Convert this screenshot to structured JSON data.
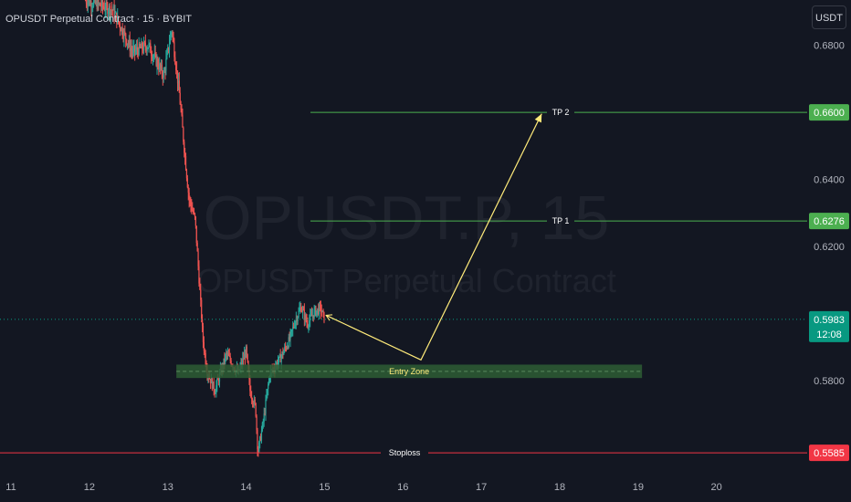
{
  "header": {
    "symbol_title": "OPUSDT Perpetual Contract · 15 · BYBIT",
    "currency_button": "USDT"
  },
  "watermark": {
    "line1": "OPUSDT.P, 15",
    "line2": "OPUSDT Perpetual Contract"
  },
  "colors": {
    "background": "#131722",
    "candle_up": "#26a69a",
    "candle_down": "#ef5350",
    "tp_line": "#4caf50",
    "stoploss_line": "#f23645",
    "entry_zone": "#2e5d34",
    "projection": "#ffeb7a",
    "current_price": "#089981"
  },
  "chart_data": {
    "type": "candlestick",
    "title": "OPUSDT Perpetual Contract · 15 · BYBIT",
    "y_axis": {
      "ticks": [
        "0.6800",
        "0.6400",
        "0.6200",
        "0.5800"
      ],
      "ylim": [
        0.552,
        0.6935
      ],
      "position": "right"
    },
    "x_axis": {
      "ticks": [
        "11",
        "12",
        "13",
        "14",
        "15",
        "16",
        "17",
        "18",
        "19",
        "20"
      ],
      "xlim": [
        11.0,
        21.25
      ]
    },
    "price_levels": [
      {
        "label": "TP 2",
        "value": 0.66,
        "tag": "0.6600"
      },
      {
        "label": "TP 1",
        "value": 0.6276,
        "tag": "0.6276"
      },
      {
        "label": "Stoploss",
        "value": 0.5585,
        "tag": "0.5585"
      }
    ],
    "current_price": {
      "value": 0.5983,
      "tag": "0.5983",
      "countdown": "12:08"
    },
    "entry_zone": {
      "label": "Entry Zone",
      "from": 0.5808,
      "to": 0.5848,
      "x_start": 13.11,
      "x_end": 19.05
    },
    "projection_path": [
      {
        "x": 15.02,
        "y": 0.5995
      },
      {
        "x": 16.23,
        "y": 0.5862
      },
      {
        "x": 17.77,
        "y": 0.6596
      }
    ],
    "price_path": [
      {
        "x": 11.95,
        "y": 0.6935
      },
      {
        "x": 12.3,
        "y": 0.6905
      },
      {
        "x": 12.55,
        "y": 0.678
      },
      {
        "x": 12.75,
        "y": 0.68
      },
      {
        "x": 12.95,
        "y": 0.671
      },
      {
        "x": 13.05,
        "y": 0.685
      },
      {
        "x": 13.15,
        "y": 0.665
      },
      {
        "x": 13.2,
        "y": 0.652
      },
      {
        "x": 13.27,
        "y": 0.6345
      },
      {
        "x": 13.35,
        "y": 0.628
      },
      {
        "x": 13.4,
        "y": 0.61
      },
      {
        "x": 13.45,
        "y": 0.592
      },
      {
        "x": 13.5,
        "y": 0.583
      },
      {
        "x": 13.6,
        "y": 0.577
      },
      {
        "x": 13.75,
        "y": 0.588
      },
      {
        "x": 13.9,
        "y": 0.582
      },
      {
        "x": 14.0,
        "y": 0.589
      },
      {
        "x": 14.05,
        "y": 0.577
      },
      {
        "x": 14.12,
        "y": 0.572
      },
      {
        "x": 14.15,
        "y": 0.5585
      },
      {
        "x": 14.22,
        "y": 0.568
      },
      {
        "x": 14.3,
        "y": 0.582
      },
      {
        "x": 14.42,
        "y": 0.586
      },
      {
        "x": 14.55,
        "y": 0.592
      },
      {
        "x": 14.62,
        "y": 0.5975
      },
      {
        "x": 14.7,
        "y": 0.602
      },
      {
        "x": 14.78,
        "y": 0.597
      },
      {
        "x": 14.87,
        "y": 0.6005
      },
      {
        "x": 14.95,
        "y": 0.6015
      },
      {
        "x": 15.0,
        "y": 0.5983
      }
    ]
  }
}
